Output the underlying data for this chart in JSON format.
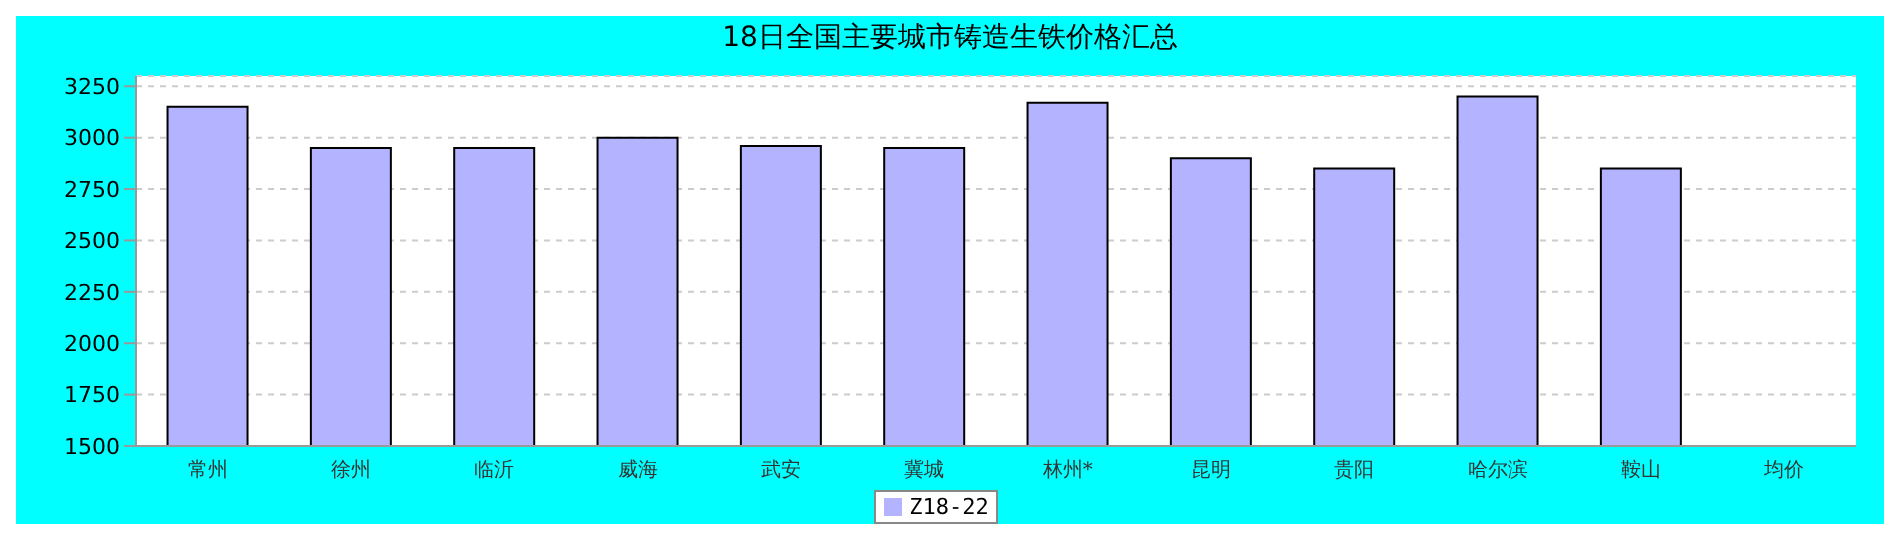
{
  "chart_data": {
    "type": "bar",
    "title": "18日全国主要城市铸造生铁价格汇总",
    "categories": [
      "常州",
      "徐州",
      "临沂",
      "威海",
      "武安",
      "冀城",
      "林州*",
      "昆明",
      "贵阳",
      "哈尔滨",
      "鞍山",
      "均价"
    ],
    "series": [
      {
        "name": "Z18-22",
        "color": "#b3b3ff",
        "values": [
          3150,
          2950,
          2950,
          3000,
          2960,
          2950,
          3170,
          2900,
          2850,
          3200,
          2850,
          null
        ]
      }
    ],
    "ylim": [
      1500,
      3300
    ],
    "yticks": [
      1500,
      1750,
      2000,
      2250,
      2500,
      2750,
      3000,
      3250
    ],
    "grid": "y",
    "legend": "bottom"
  }
}
